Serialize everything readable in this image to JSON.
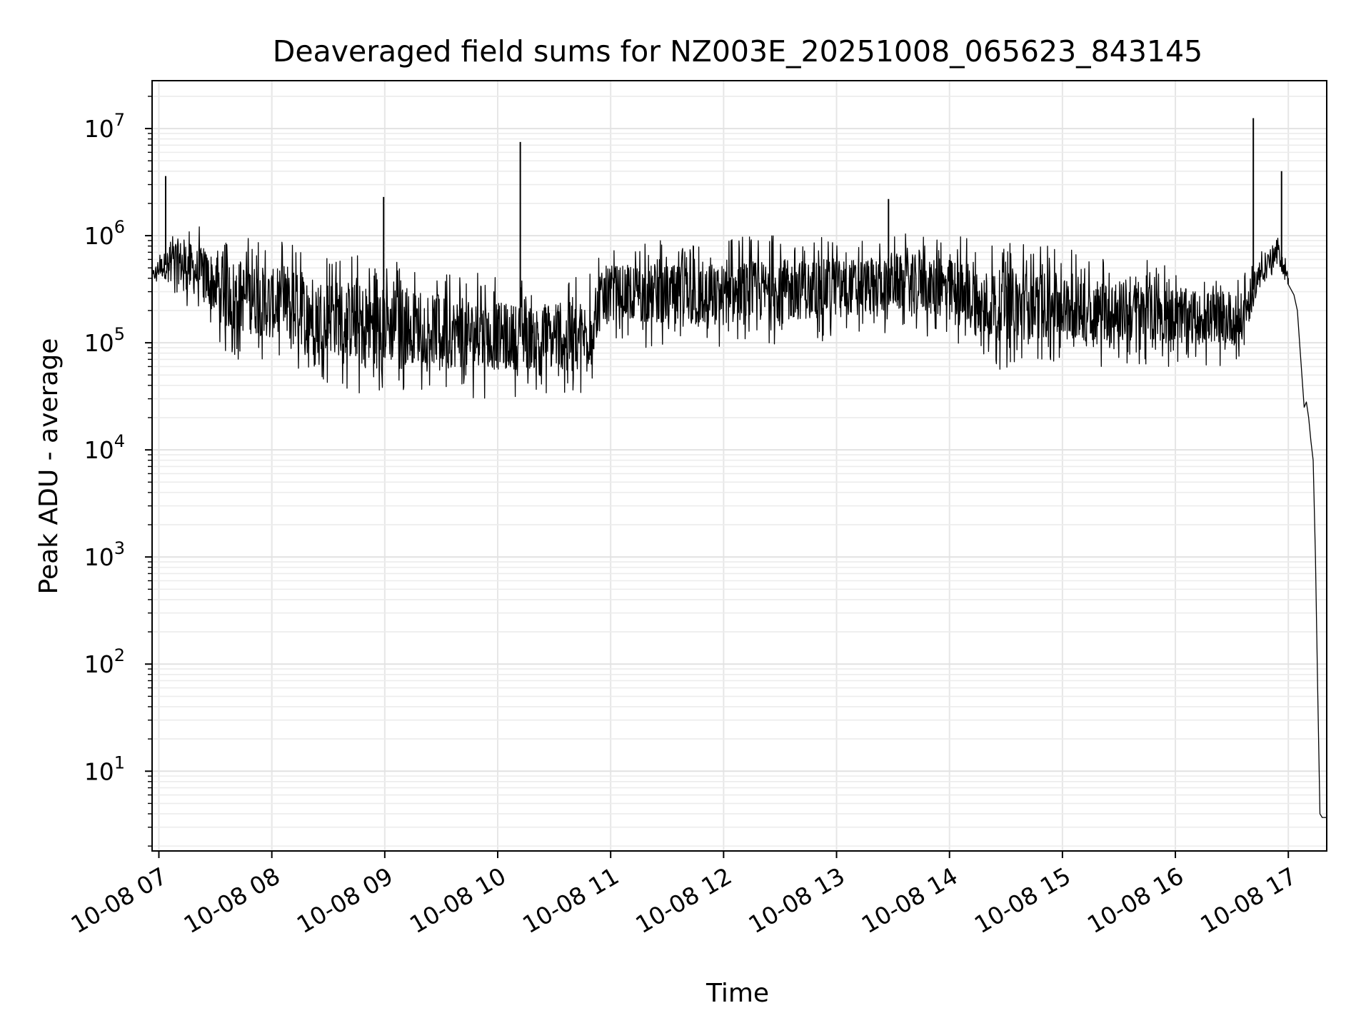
{
  "chart_data": {
    "type": "line",
    "title": "Deaveraged field sums for NZ003E_20251008_065623_843145",
    "xlabel": "Time",
    "ylabel": "Peak ADU - average",
    "yscale": "log",
    "ylim": [
      1.8,
      28000000
    ],
    "xlim_hours": [
      6.94,
      17.34
    ],
    "grid": true,
    "line_color": "#000000",
    "x_ticks": [
      {
        "hour": 7,
        "label": "10-08 07"
      },
      {
        "hour": 8,
        "label": "10-08 08"
      },
      {
        "hour": 9,
        "label": "10-08 09"
      },
      {
        "hour": 10,
        "label": "10-08 10"
      },
      {
        "hour": 11,
        "label": "10-08 11"
      },
      {
        "hour": 12,
        "label": "10-08 12"
      },
      {
        "hour": 13,
        "label": "10-08 13"
      },
      {
        "hour": 14,
        "label": "10-08 14"
      },
      {
        "hour": 15,
        "label": "10-08 15"
      },
      {
        "hour": 16,
        "label": "10-08 16"
      },
      {
        "hour": 17,
        "label": "10-08 17"
      }
    ],
    "y_ticks": [
      {
        "exp": 1,
        "base": "10",
        "sup": "1"
      },
      {
        "exp": 2,
        "base": "10",
        "sup": "2"
      },
      {
        "exp": 3,
        "base": "10",
        "sup": "3"
      },
      {
        "exp": 4,
        "base": "10",
        "sup": "4"
      },
      {
        "exp": 5,
        "base": "10",
        "sup": "5"
      },
      {
        "exp": 6,
        "base": "10",
        "sup": "6"
      },
      {
        "exp": 7,
        "base": "10",
        "sup": "7"
      }
    ],
    "series": [
      {
        "name": "Peak ADU - average",
        "envelope": [
          {
            "t": 6.94,
            "lo": 320000,
            "hi": 520000
          },
          {
            "t": 7.0,
            "lo": 350000,
            "hi": 700000
          },
          {
            "t": 7.15,
            "lo": 250000,
            "hi": 1400000
          },
          {
            "t": 7.4,
            "lo": 150000,
            "hi": 1200000
          },
          {
            "t": 7.6,
            "lo": 70000,
            "hi": 1200000
          },
          {
            "t": 8.0,
            "lo": 60000,
            "hi": 900000
          },
          {
            "t": 8.4,
            "lo": 45000,
            "hi": 800000
          },
          {
            "t": 8.8,
            "lo": 32000,
            "hi": 700000
          },
          {
            "t": 9.3,
            "lo": 35000,
            "hi": 550000
          },
          {
            "t": 9.8,
            "lo": 30000,
            "hi": 450000
          },
          {
            "t": 10.3,
            "lo": 32000,
            "hi": 400000
          },
          {
            "t": 10.8,
            "lo": 30000,
            "hi": 450000
          },
          {
            "t": 10.95,
            "lo": 120000,
            "hi": 800000
          },
          {
            "t": 11.3,
            "lo": 90000,
            "hi": 900000
          },
          {
            "t": 11.8,
            "lo": 80000,
            "hi": 900000
          },
          {
            "t": 12.3,
            "lo": 90000,
            "hi": 1000000
          },
          {
            "t": 12.8,
            "lo": 100000,
            "hi": 1000000
          },
          {
            "t": 13.3,
            "lo": 120000,
            "hi": 1000000
          },
          {
            "t": 13.7,
            "lo": 120000,
            "hi": 1100000
          },
          {
            "t": 14.1,
            "lo": 90000,
            "hi": 1000000
          },
          {
            "t": 14.3,
            "lo": 55000,
            "hi": 900000
          },
          {
            "t": 14.8,
            "lo": 60000,
            "hi": 850000
          },
          {
            "t": 15.3,
            "lo": 60000,
            "hi": 700000
          },
          {
            "t": 15.7,
            "lo": 60000,
            "hi": 600000
          },
          {
            "t": 16.2,
            "lo": 60000,
            "hi": 500000
          },
          {
            "t": 16.6,
            "lo": 60000,
            "hi": 450000
          },
          {
            "t": 16.73,
            "lo": 250000,
            "hi": 700000
          },
          {
            "t": 16.9,
            "lo": 500000,
            "hi": 1100000
          },
          {
            "t": 17.0,
            "lo": 280000,
            "hi": 500000
          }
        ],
        "decay": [
          {
            "t": 17.0,
            "v": 350000
          },
          {
            "t": 17.05,
            "v": 280000
          },
          {
            "t": 17.08,
            "v": 200000
          },
          {
            "t": 17.1,
            "v": 100000
          },
          {
            "t": 17.12,
            "v": 50000
          },
          {
            "t": 17.14,
            "v": 25000
          },
          {
            "t": 17.16,
            "v": 28000
          },
          {
            "t": 17.18,
            "v": 20000
          },
          {
            "t": 17.2,
            "v": 12000
          },
          {
            "t": 17.22,
            "v": 8000
          },
          {
            "t": 17.24,
            "v": 1000
          },
          {
            "t": 17.26,
            "v": 60
          },
          {
            "t": 17.28,
            "v": 4
          },
          {
            "t": 17.3,
            "v": 3.7
          },
          {
            "t": 17.34,
            "v": 3.7
          }
        ],
        "spikes": [
          {
            "t": 7.06,
            "v": 3600000
          },
          {
            "t": 8.99,
            "v": 2300000
          },
          {
            "t": 10.2,
            "v": 7500000
          },
          {
            "t": 13.46,
            "v": 2200000
          },
          {
            "t": 16.69,
            "v": 12500000
          },
          {
            "t": 16.94,
            "v": 4000000
          }
        ]
      }
    ]
  }
}
